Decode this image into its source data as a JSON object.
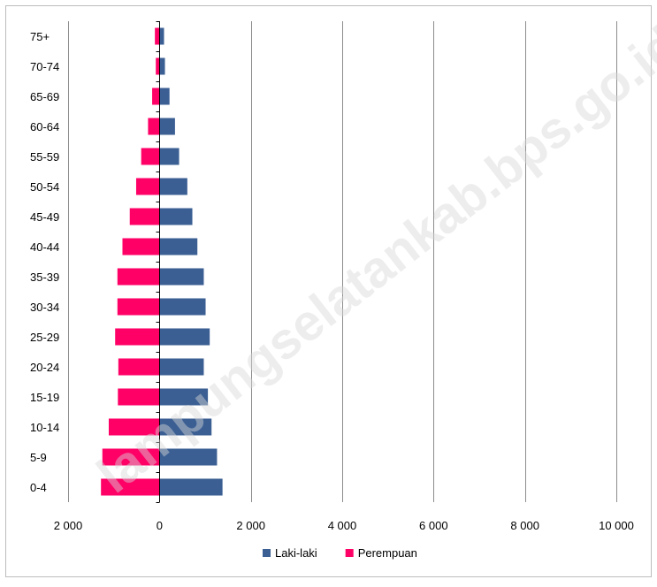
{
  "chart_data": {
    "type": "bar",
    "orientation": "horizontal",
    "categories": [
      "0-4",
      "5-9",
      "10-14",
      "15-19",
      "20-24",
      "25-29",
      "30-34",
      "35-39",
      "40-44",
      "45-49",
      "50-54",
      "55-59",
      "60-64",
      "65-69",
      "70-74",
      "75+"
    ],
    "series": [
      {
        "name": "Laki-laki",
        "color": "#3b5f93",
        "values": [
          1380,
          1260,
          1140,
          1060,
          970,
          1100,
          1010,
          970,
          830,
          720,
          610,
          430,
          340,
          220,
          120,
          100
        ]
      },
      {
        "name": "Perempuan",
        "color": "#ff0066",
        "values": [
          1280,
          1250,
          1110,
          910,
          900,
          970,
          920,
          920,
          810,
          650,
          510,
          400,
          250,
          160,
          80,
          100
        ]
      }
    ],
    "series_direction": {
      "Laki-laki": "right",
      "Perempuan": "left"
    },
    "xlim": [
      -2000,
      10000
    ],
    "x_ticks": [
      -2000,
      0,
      2000,
      4000,
      6000,
      8000,
      10000
    ],
    "x_tick_labels": [
      "2 000",
      "0",
      "2 000",
      "4 000",
      "6 000",
      "8 000",
      "10 000"
    ],
    "title": "",
    "xlabel": "",
    "ylabel": "",
    "grid": "vertical",
    "legend_position": "bottom",
    "watermark": "lampungselatankab.bps.go.id"
  }
}
